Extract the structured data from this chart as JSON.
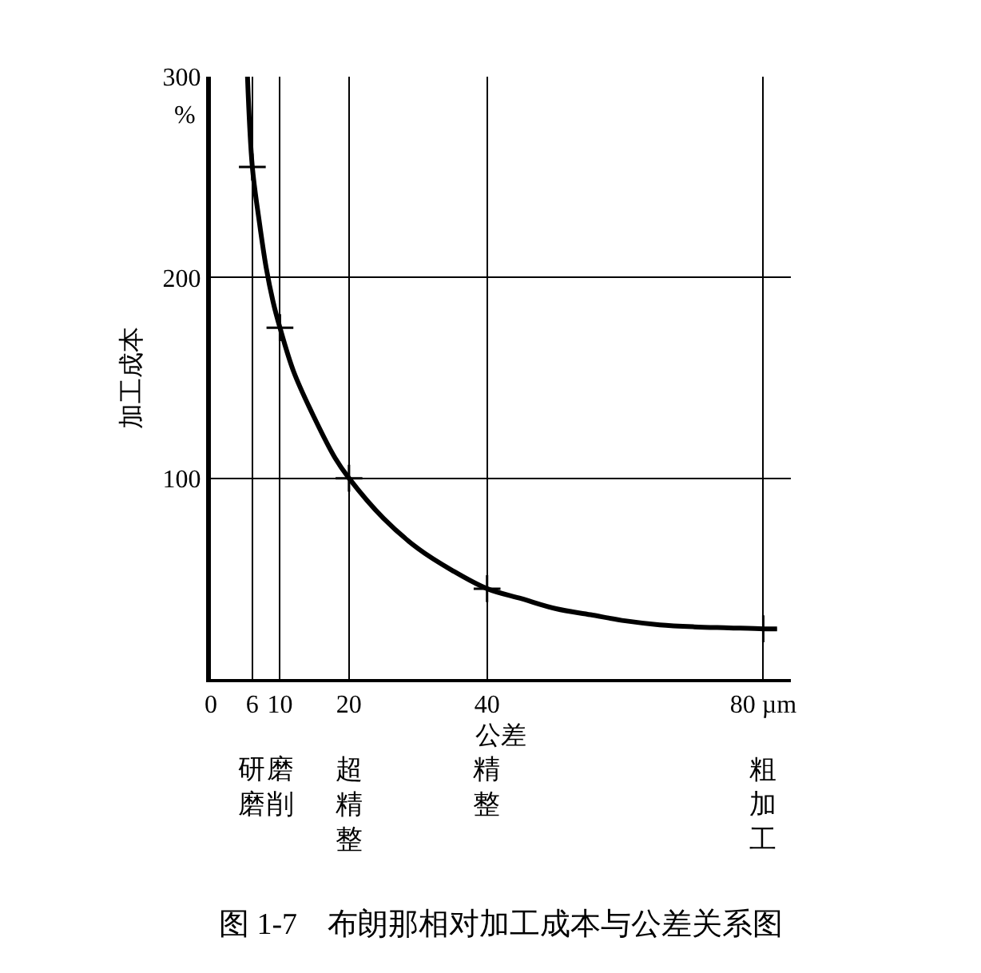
{
  "chart_data": {
    "type": "line",
    "title": "图 1-7　布朗那相对加工成本与公差关系图",
    "xlabel": "公差",
    "ylabel": "加工成本",
    "annotations": [
      "%",
      "研磨",
      "磨削",
      "超精整",
      "精整",
      "粗加工"
    ],
    "series": [
      {
        "color": "#000000",
        "marker": "none",
        "x": [
          5.3,
          6,
          7,
          8,
          9,
          10,
          12,
          15,
          18,
          20,
          25,
          30,
          35,
          40,
          45,
          50,
          55,
          60,
          65,
          70,
          75,
          80,
          82
        ],
        "values": [
          300,
          255,
          228,
          205,
          188,
          175,
          153,
          130,
          110,
          100,
          80,
          65,
          54,
          45,
          40,
          35,
          32,
          29,
          27,
          26,
          25.5,
          25,
          25
        ]
      },
      {
        "type": "scatter",
        "color": "#000000",
        "marker": "cross",
        "x": [
          6,
          10,
          20,
          40,
          80
        ],
        "values": [
          255,
          175,
          100,
          45,
          25
        ]
      }
    ],
    "xlim": [
      0,
      84
    ],
    "xticks": [
      0,
      6,
      10,
      20,
      40,
      {
        "value": 80,
        "label": "80 µm"
      }
    ],
    "ylim": [
      0,
      300
    ],
    "yticks": [
      100,
      200,
      300
    ],
    "grid": true,
    "legend": false
  }
}
